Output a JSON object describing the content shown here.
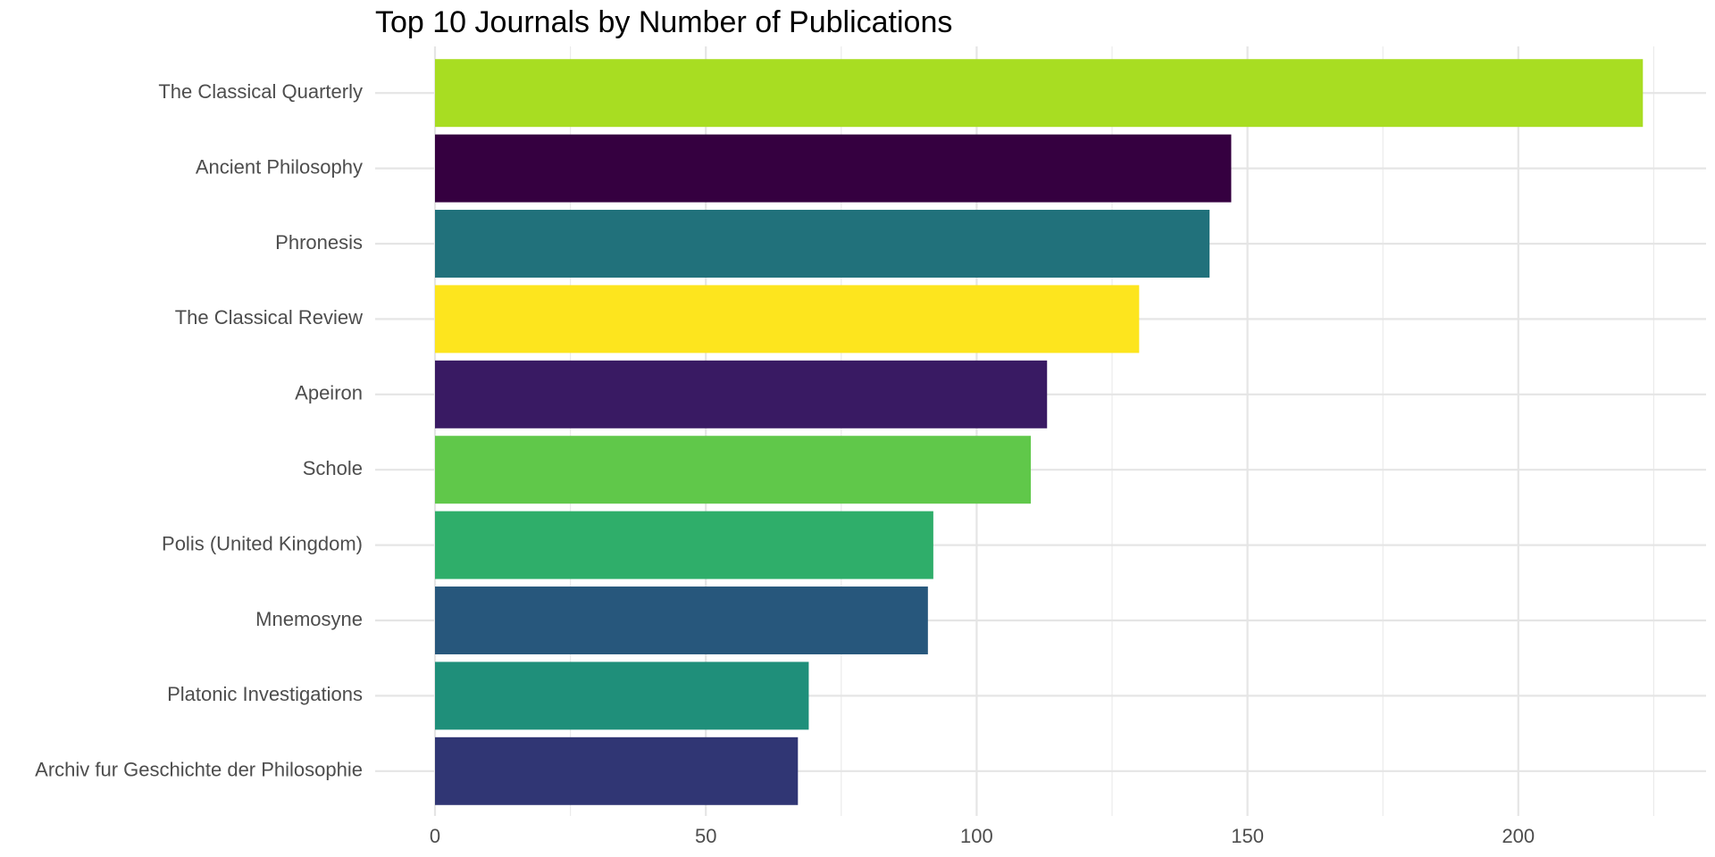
{
  "chart_data": {
    "type": "bar",
    "orientation": "horizontal",
    "title": "Top 10 Journals by Number of Publications",
    "xlabel": "",
    "ylabel": "",
    "xlim": [
      0,
      235
    ],
    "x_ticks": [
      0,
      50,
      100,
      150,
      200
    ],
    "grid": true,
    "legend": "none",
    "categories": [
      "The Classical Quarterly",
      "Ancient Philosophy",
      "Phronesis",
      "The Classical Review",
      "Apeiron",
      "Schole",
      "Polis (United Kingdom)",
      "Mnemosyne",
      "Platonic Investigations",
      "Archiv fur Geschichte der Philosophie"
    ],
    "values": [
      223,
      147,
      143,
      130,
      113,
      110,
      92,
      91,
      69,
      67
    ],
    "colors": [
      "#a8dd22",
      "#350040",
      "#21717b",
      "#fde51e",
      "#391a63",
      "#60c84a",
      "#2fae6a",
      "#27577c",
      "#1f8f7a",
      "#303674"
    ]
  }
}
